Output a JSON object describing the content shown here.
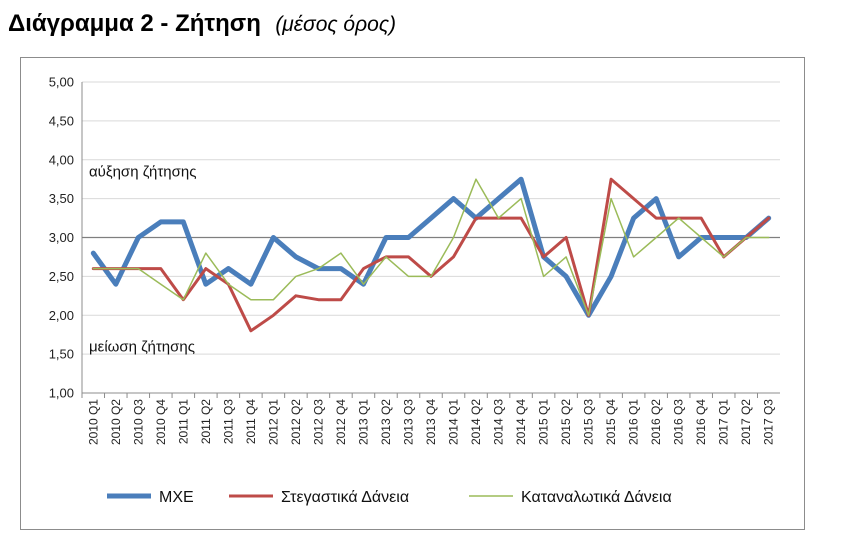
{
  "header": {
    "title": "Διάγραμμα 2 - Ζήτηση",
    "subtitle": "(μέσος όρος)"
  },
  "chart_data": {
    "type": "line",
    "title": "Διάγραμμα 2 - Ζήτηση",
    "subtitle": "(μέσος όρος)",
    "xlabel": "",
    "ylabel": "",
    "ylim": [
      1.0,
      5.0
    ],
    "yticks": [
      "1,00",
      "1,50",
      "2,00",
      "2,50",
      "3,00",
      "3,50",
      "4,00",
      "4,50",
      "5,00"
    ],
    "grid": true,
    "legend_position": "bottom",
    "reference_line": 3.0,
    "annotations": [
      {
        "text": "αύξηση ζήτησης",
        "y": 3.85
      },
      {
        "text": "μείωση ζήτησης",
        "y": 1.6
      }
    ],
    "categories": [
      "2010 Q1",
      "2010 Q2",
      "2010 Q3",
      "2010 Q4",
      "2011 Q1",
      "2011 Q2",
      "2011 Q3",
      "2011 Q4",
      "2012 Q1",
      "2012 Q2",
      "2012 Q3",
      "2012 Q4",
      "2013 Q1",
      "2013 Q2",
      "2013 Q3",
      "2013 Q4",
      "2014 Q1",
      "2014 Q2",
      "2014 Q3",
      "2014 Q4",
      "2015 Q1",
      "2015 Q2",
      "2015 Q3",
      "2015 Q4",
      "2016 Q1",
      "2016 Q2",
      "2016 Q3",
      "2016 Q4",
      "2017 Q1",
      "2017 Q2",
      "2017 Q3"
    ],
    "series": [
      {
        "name": "ΜΧΕ",
        "color": "#4a7ebb",
        "width": 5,
        "values": [
          2.8,
          2.4,
          3.0,
          3.2,
          3.2,
          2.4,
          2.6,
          2.4,
          3.0,
          2.75,
          2.6,
          2.6,
          2.4,
          3.0,
          3.0,
          3.25,
          3.5,
          3.25,
          3.5,
          3.75,
          2.75,
          2.5,
          2.0,
          2.5,
          3.25,
          3.5,
          2.75,
          3.0,
          3.0,
          3.0,
          3.25
        ]
      },
      {
        "name": "Στεγαστικά Δάνεια",
        "color": "#be4b48",
        "width": 3,
        "values": [
          2.6,
          2.6,
          2.6,
          2.6,
          2.2,
          2.6,
          2.4,
          1.8,
          2.0,
          2.25,
          2.2,
          2.2,
          2.6,
          2.75,
          2.75,
          2.5,
          2.75,
          3.25,
          3.25,
          3.25,
          2.75,
          3.0,
          2.0,
          3.75,
          3.5,
          3.25,
          3.25,
          3.25,
          2.75,
          3.0,
          3.25
        ]
      },
      {
        "name": "Καταναλωτικά Δάνεια",
        "color": "#9bbb59",
        "width": 1.5,
        "values": [
          2.6,
          2.6,
          2.6,
          2.4,
          2.2,
          2.8,
          2.4,
          2.2,
          2.2,
          2.5,
          2.6,
          2.8,
          2.4,
          2.75,
          2.5,
          2.5,
          3.0,
          3.75,
          3.25,
          3.5,
          2.5,
          2.75,
          2.0,
          3.5,
          2.75,
          3.0,
          3.25,
          3.0,
          2.75,
          3.0,
          3.0
        ]
      }
    ]
  }
}
